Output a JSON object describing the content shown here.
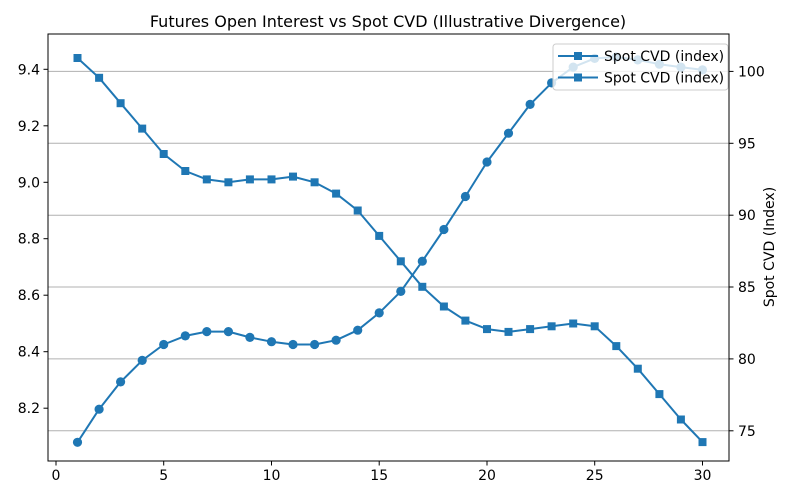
{
  "chart_data": {
    "type": "line",
    "title": "Futures Open Interest vs Spot CVD (Illustrative Divergence)",
    "x": [
      1,
      2,
      3,
      4,
      5,
      6,
      7,
      8,
      9,
      10,
      11,
      12,
      13,
      14,
      15,
      16,
      17,
      18,
      19,
      20,
      21,
      22,
      23,
      24,
      25,
      26,
      27,
      28,
      29,
      30
    ],
    "series": [
      {
        "name": "Spot CVD (index)",
        "axis": "left",
        "marker": "square",
        "color": "#1f77b4",
        "values": [
          9.44,
          9.37,
          9.28,
          9.19,
          9.1,
          9.04,
          9.01,
          9.0,
          9.01,
          9.01,
          9.02,
          9.0,
          8.96,
          8.9,
          8.81,
          8.72,
          8.63,
          8.56,
          8.51,
          8.48,
          8.47,
          8.48,
          8.49,
          8.5,
          8.49,
          8.42,
          8.34,
          8.25,
          8.16,
          8.08
        ]
      },
      {
        "name": "Spot CVD (index)",
        "axis": "right",
        "marker": "circle",
        "color": "#1f77b4",
        "values": [
          74.2,
          76.5,
          78.4,
          79.9,
          81.0,
          81.6,
          81.9,
          81.9,
          81.5,
          81.2,
          81.0,
          81.0,
          81.3,
          82.0,
          83.2,
          84.7,
          86.8,
          89.0,
          91.3,
          93.7,
          95.7,
          97.7,
          99.2,
          100.3,
          100.9,
          101.0,
          100.8,
          100.5,
          100.3,
          100.1
        ]
      }
    ],
    "x_axis": {
      "ticks": [
        0,
        5,
        10,
        15,
        20,
        25,
        30
      ],
      "lim": [
        -0.37,
        31.23
      ]
    },
    "left_axis": {
      "ticks": [
        8.2,
        8.4,
        8.6,
        8.8,
        9.0,
        9.2,
        9.4
      ],
      "lim": [
        8.013,
        9.525
      ],
      "decimals": 1
    },
    "right_axis": {
      "label": "Spot CVD (Index)",
      "ticks": [
        75,
        80,
        85,
        90,
        95,
        100
      ],
      "lim": [
        72.9,
        102.6
      ],
      "decimals": 0
    },
    "legend": {
      "position": "upper right",
      "entries": [
        "Spot CVD (index)",
        "Spot CVD (index)"
      ]
    },
    "grid": {
      "horizontal": true,
      "vertical": false,
      "source_axis": "right"
    },
    "colors": {
      "series": "#1f77b4",
      "grid": "#b0b0b0",
      "spine": "#000000",
      "legend_border": "#cccccc",
      "background": "#ffffff"
    }
  }
}
